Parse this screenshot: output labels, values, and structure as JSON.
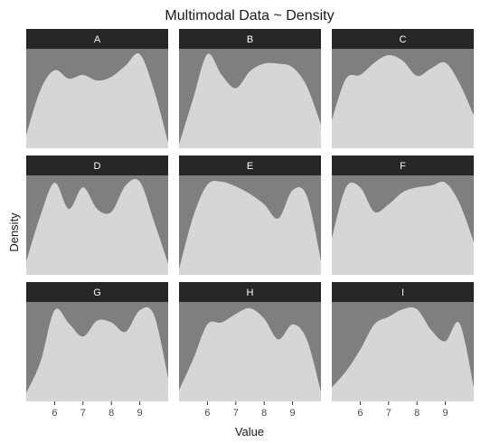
{
  "chart_data": {
    "type": "area",
    "title": "Multimodal Data ~ Density",
    "xlabel": "Value",
    "ylabel": "Density",
    "xlim": [
      5.0,
      10.0
    ],
    "x_ticks": [
      6,
      7,
      8,
      9
    ],
    "x_tick_labels": [
      "6",
      "7",
      "8",
      "9"
    ],
    "y_scale": "relative (0 to 1 per panel)",
    "grid": false,
    "legend": "none",
    "colors": {
      "panel_background": "#7f7f7f",
      "density_fill": "#d6d6d6",
      "strip_background": "#262626",
      "strip_text": "#ffffff"
    },
    "x": [
      5.0,
      5.5,
      6.0,
      6.5,
      7.0,
      7.5,
      8.0,
      8.5,
      9.0,
      9.5,
      10.0
    ],
    "panels": [
      {
        "label": "A",
        "values": [
          0.14,
          0.62,
          0.83,
          0.74,
          0.78,
          0.72,
          0.76,
          0.88,
          1.0,
          0.62,
          0.06
        ]
      },
      {
        "label": "B",
        "values": [
          0.04,
          0.53,
          1.0,
          0.78,
          0.64,
          0.82,
          0.9,
          0.9,
          0.86,
          0.66,
          0.25
        ]
      },
      {
        "label": "C",
        "values": [
          0.3,
          0.74,
          0.78,
          0.91,
          0.99,
          0.93,
          0.77,
          0.85,
          0.91,
          0.69,
          0.35
        ]
      },
      {
        "label": "D",
        "values": [
          0.14,
          0.63,
          0.98,
          0.7,
          0.93,
          0.7,
          0.67,
          0.95,
          0.99,
          0.57,
          0.12
        ]
      },
      {
        "label": "E",
        "values": [
          0.06,
          0.62,
          0.96,
          0.99,
          0.94,
          0.86,
          0.75,
          0.6,
          0.9,
          0.84,
          0.15
        ]
      },
      {
        "label": "F",
        "values": [
          0.39,
          0.93,
          0.93,
          0.67,
          0.75,
          0.88,
          0.93,
          0.95,
          0.98,
          0.76,
          0.35
        ]
      },
      {
        "label": "G",
        "values": [
          0.09,
          0.42,
          0.97,
          0.83,
          0.69,
          0.86,
          0.84,
          0.74,
          0.97,
          0.92,
          0.25
        ]
      },
      {
        "label": "H",
        "values": [
          0.12,
          0.45,
          0.82,
          0.84,
          0.93,
          0.99,
          0.88,
          0.66,
          0.82,
          0.66,
          0.1
        ]
      },
      {
        "label": "I",
        "values": [
          0.15,
          0.32,
          0.55,
          0.82,
          0.9,
          0.98,
          0.98,
          0.76,
          0.64,
          0.83,
          0.15
        ]
      }
    ]
  }
}
